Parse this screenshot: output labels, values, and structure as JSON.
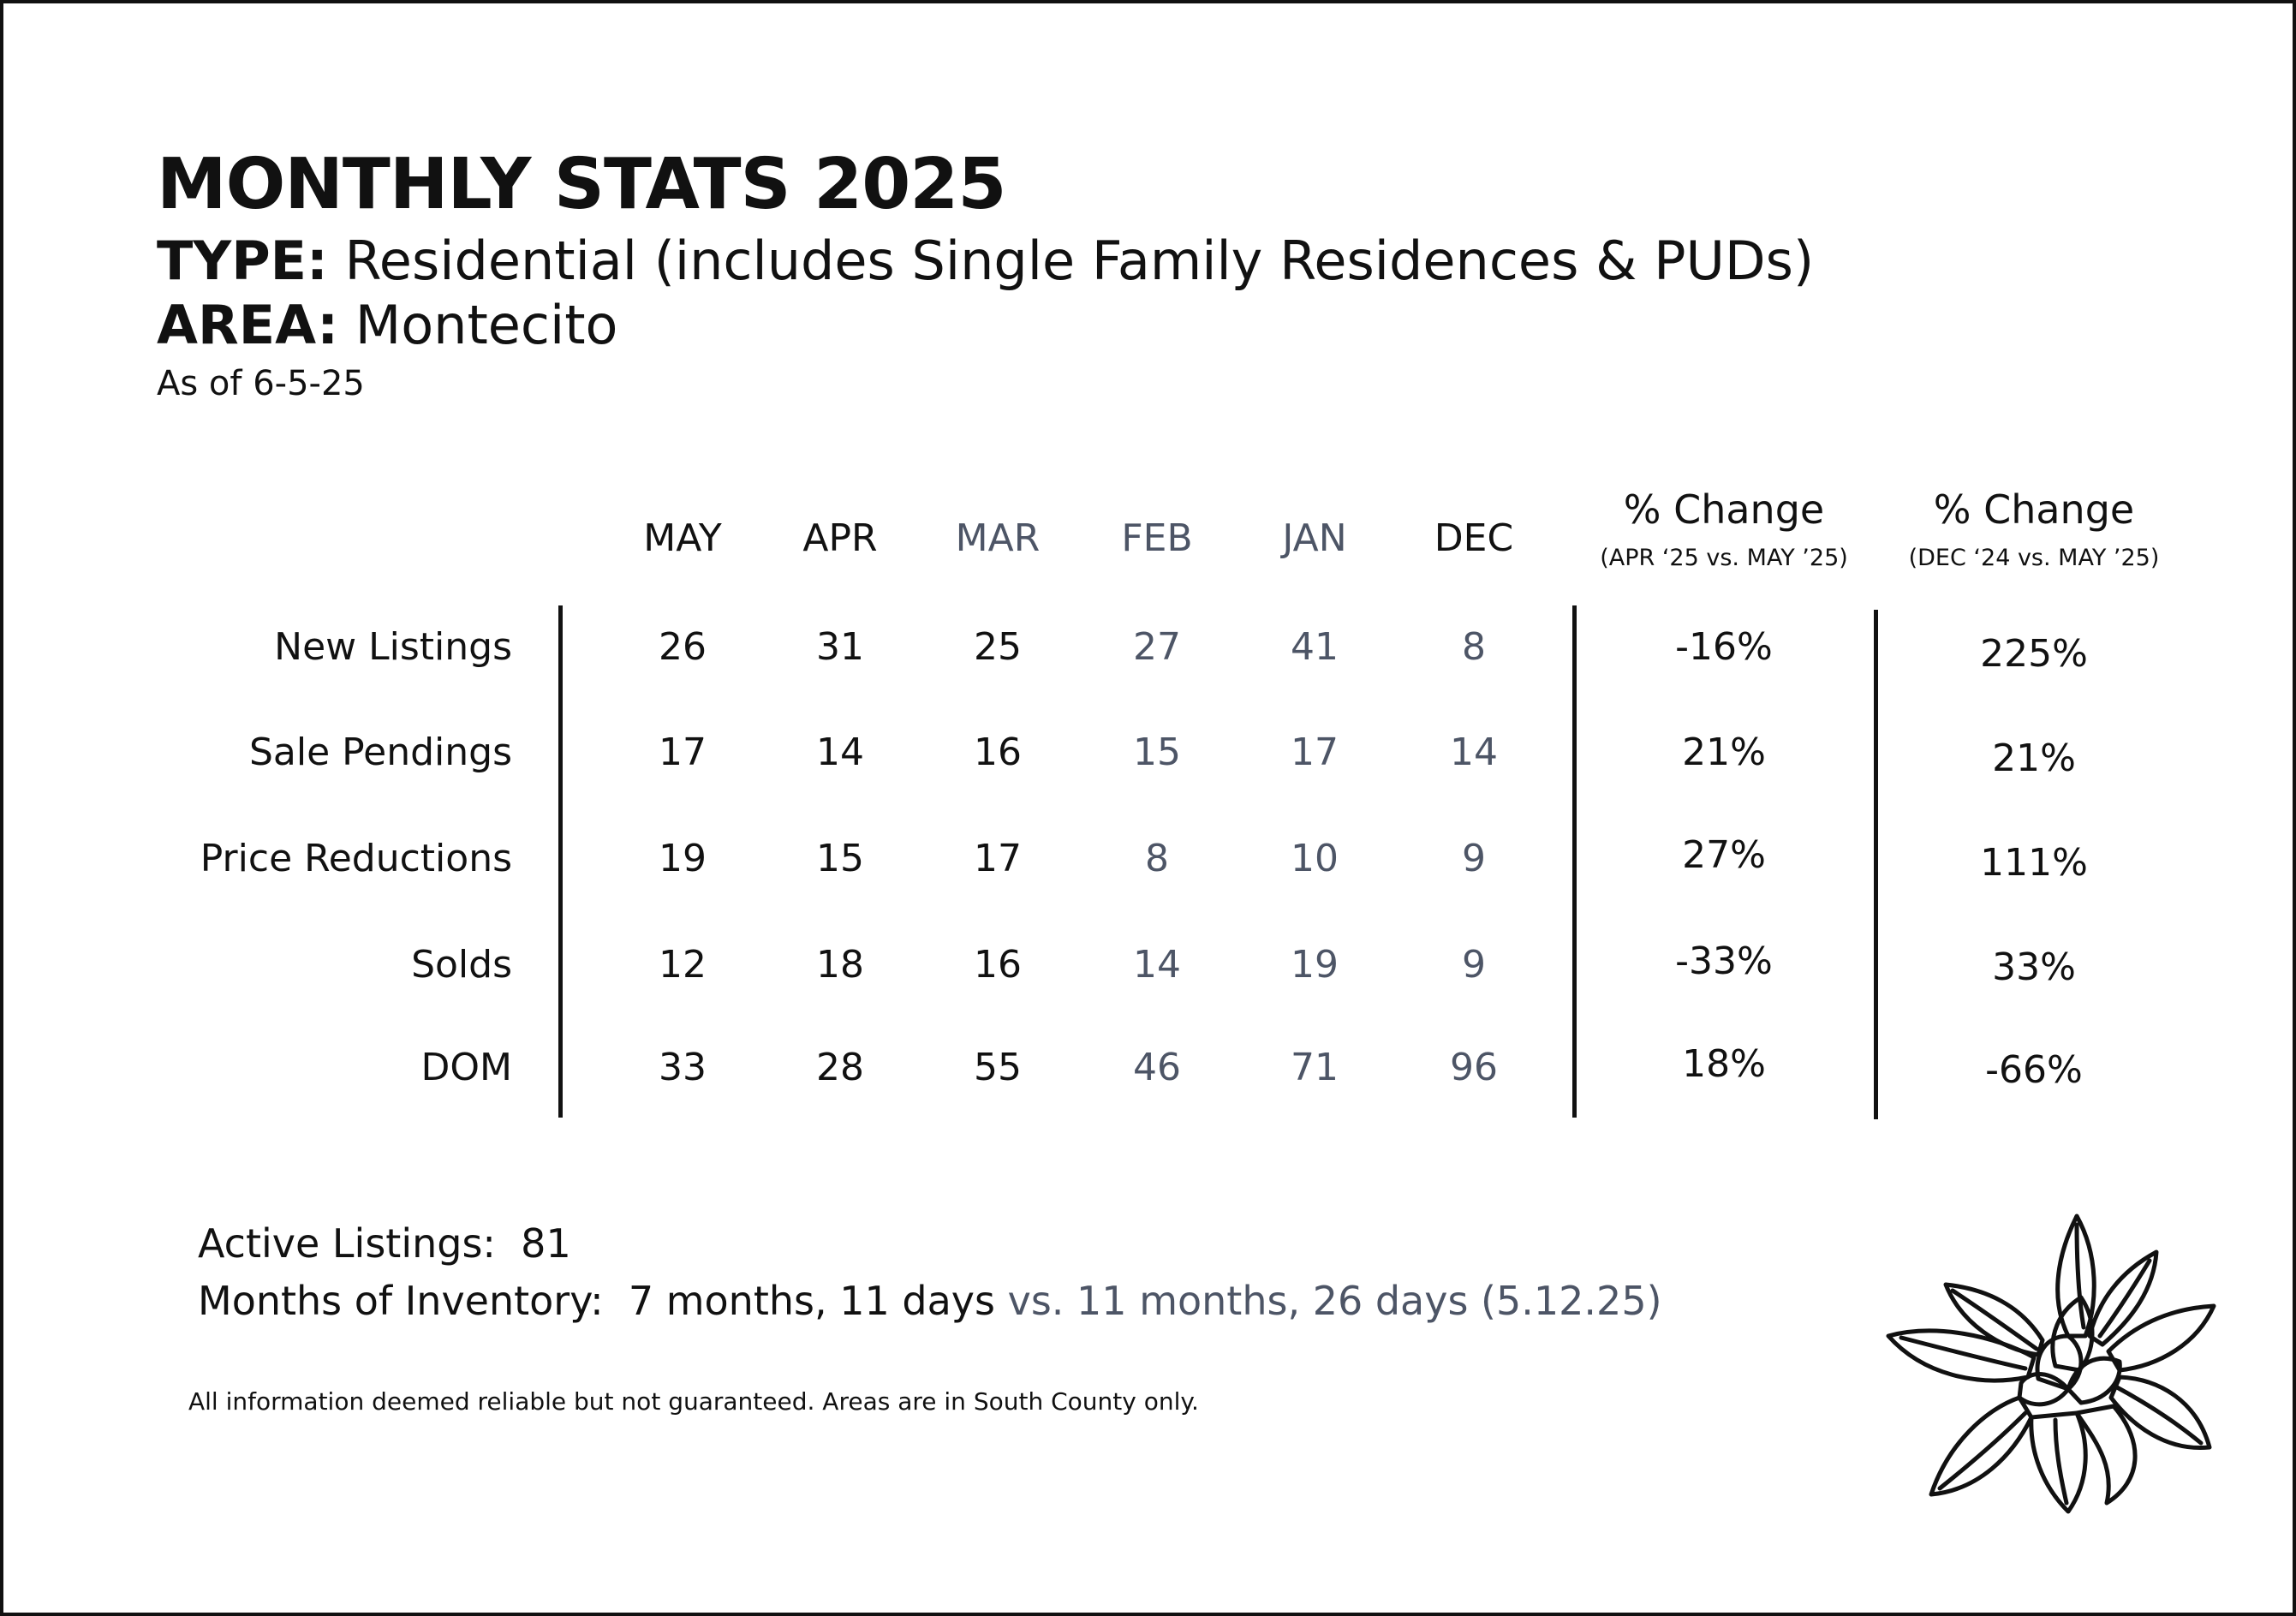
{
  "header": {
    "title": "MONTHLY STATS 2025",
    "type_label": "TYPE:",
    "type_value": "Residential (includes Single Family Residences & PUDs)",
    "area_label": "AREA:",
    "area_value": "Montecito",
    "as_of": "As of 6-5-25"
  },
  "table": {
    "months": [
      {
        "label": "MAY",
        "muted": false
      },
      {
        "label": "APR",
        "muted": false
      },
      {
        "label": "MAR",
        "muted": true
      },
      {
        "label": "FEB",
        "muted": true
      },
      {
        "label": "JAN",
        "muted": true
      },
      {
        "label": "DEC",
        "muted": false
      }
    ],
    "pct_columns": [
      {
        "title": "% Change",
        "subtitle": "(APR ‘25 vs. MAY ’25)"
      },
      {
        "title": "% Change",
        "subtitle": "(DEC ‘24 vs. MAY ’25)"
      }
    ],
    "rows": [
      {
        "label": "New Listings",
        "values": [
          "26",
          "31",
          "25",
          "27",
          "41",
          "8"
        ],
        "pct": [
          "-16%",
          "225%"
        ]
      },
      {
        "label": "Sale Pendings",
        "values": [
          "17",
          "14",
          "16",
          "15",
          "17",
          "14"
        ],
        "pct": [
          "21%",
          "21%"
        ]
      },
      {
        "label": "Price Reductions",
        "values": [
          "19",
          "15",
          "17",
          "8",
          "10",
          "9"
        ],
        "pct": [
          "27%",
          "111%"
        ]
      },
      {
        "label": "Solds",
        "values": [
          "12",
          "18",
          "16",
          "14",
          "19",
          "9"
        ],
        "pct": [
          "-33%",
          "33%"
        ]
      },
      {
        "label": "DOM",
        "values": [
          "33",
          "28",
          "55",
          "46",
          "71",
          "96"
        ],
        "pct": [
          "18%",
          "-66%"
        ]
      }
    ]
  },
  "summary": {
    "active_label": "Active Listings:",
    "active_value": "81",
    "inventory_label": "Months of Inventory:",
    "inventory_value": "7 months, 11 days",
    "inventory_compare": "vs. 11 months, 26 days (5.12.25)"
  },
  "footer": {
    "disclaimer": "All information deemed reliable but not guaranteed. Areas are in South County only."
  },
  "colors": {
    "text": "#111111",
    "muted": "#4d5566"
  },
  "icons": {
    "decoration": "magnolia-flower-icon"
  }
}
